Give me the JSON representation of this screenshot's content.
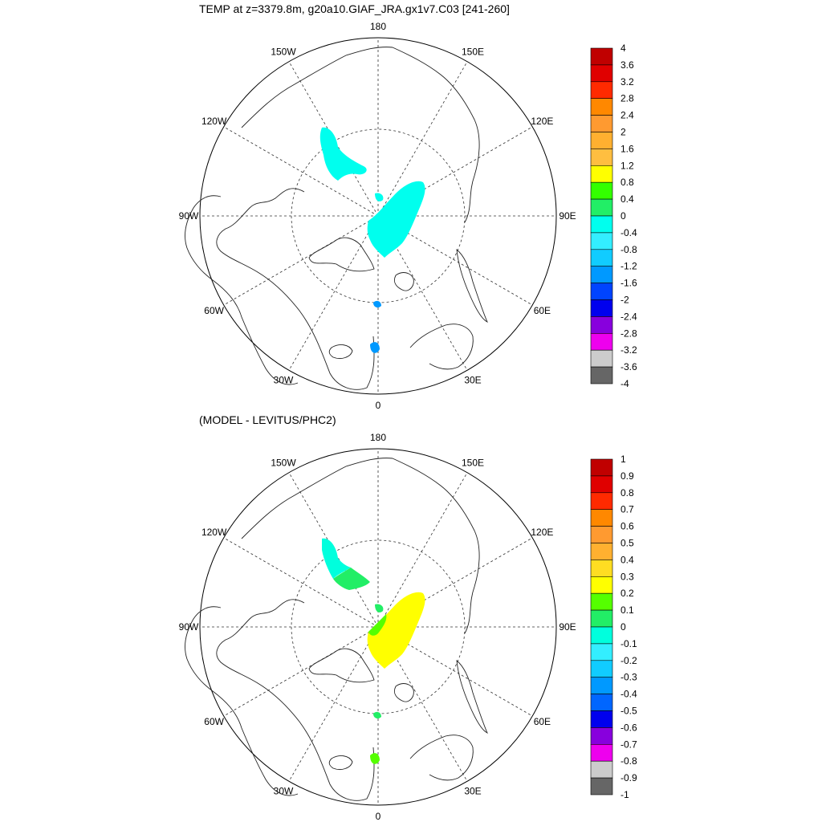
{
  "panels": [
    {
      "title": "TEMP at z=3379.8m, g20a10.GIAF_JRA.gx1v7.C03 [241-260]",
      "longitude_labels": [
        "180",
        "150E",
        "120E",
        "90E",
        "60E",
        "30E",
        "0",
        "30W",
        "60W",
        "90W",
        "120W",
        "150W"
      ],
      "colorbar": {
        "labels": [
          "4",
          "3.6",
          "3.2",
          "2.8",
          "2.4",
          "2",
          "1.6",
          "1.2",
          "0.8",
          "0.4",
          "0",
          "-0.4",
          "-0.8",
          "-1.2",
          "-1.6",
          "-2",
          "-2.4",
          "-2.8",
          "-3.2",
          "-3.6",
          "-4"
        ],
        "colors": [
          "#c00000",
          "#e00000",
          "#ff2a00",
          "#ff8800",
          "#ff9a30",
          "#ffb030",
          "#ffbe40",
          "#ffff00",
          "#33ff00",
          "#22ee66",
          "#00ffee",
          "#33eeff",
          "#11ccff",
          "#0099ff",
          "#0044ff",
          "#0000ee",
          "#8800dd",
          "#ee00ee",
          "#cccccc",
          "#666666"
        ]
      },
      "field_colors": {
        "main": "#00ffee",
        "small": "#0099ff"
      }
    },
    {
      "title": "(MODEL - LEVITUS/PHC2)",
      "longitude_labels": [
        "180",
        "150E",
        "120E",
        "90E",
        "60E",
        "30E",
        "0",
        "30W",
        "60W",
        "90W",
        "120W",
        "150W"
      ],
      "colorbar": {
        "labels": [
          "1",
          "0.9",
          "0.8",
          "0.7",
          "0.6",
          "0.5",
          "0.4",
          "0.3",
          "0.2",
          "0.1",
          "0",
          "-0.1",
          "-0.2",
          "-0.3",
          "-0.4",
          "-0.5",
          "-0.6",
          "-0.7",
          "-0.8",
          "-0.9",
          "-1"
        ],
        "colors": [
          "#c00000",
          "#e00000",
          "#ff2a00",
          "#ff8800",
          "#ff9a30",
          "#ffb030",
          "#ffdd22",
          "#ffff00",
          "#55ff00",
          "#22ee66",
          "#00ffdd",
          "#33eeff",
          "#11ccff",
          "#0099ff",
          "#0066ff",
          "#0000ee",
          "#8800dd",
          "#ee00ee",
          "#cccccc",
          "#666666"
        ]
      },
      "field_colors": {
        "main": "#ffff00",
        "green": "#22ee66",
        "lime": "#55ff00",
        "teal": "#00ffdd"
      }
    }
  ]
}
